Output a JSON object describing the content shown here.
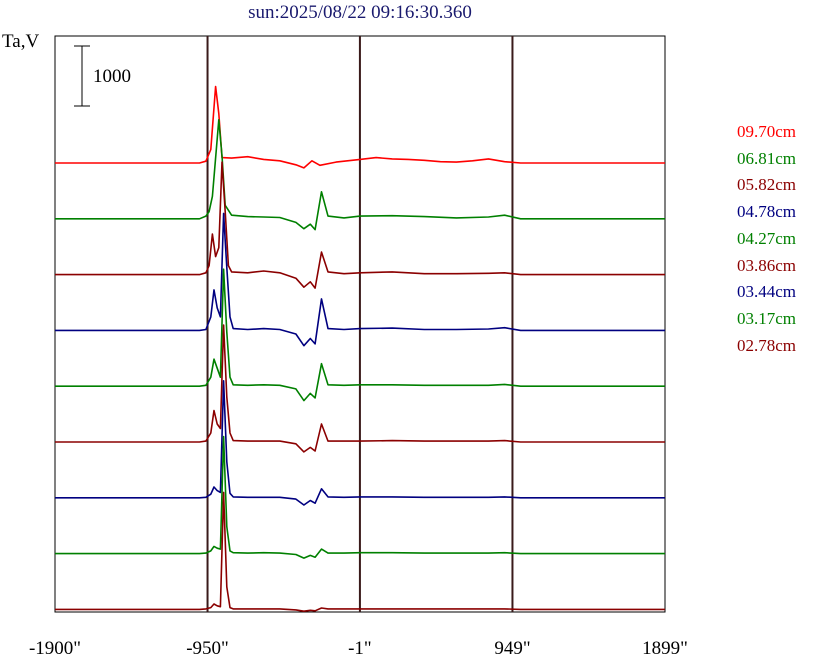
{
  "chart_data": {
    "type": "line",
    "title": "sun:2025/08/22 09:16:30.360",
    "ylabel": "Ta,V",
    "scale_bar_label": "1000",
    "scale_bar_value": 1000,
    "x_ticks": [
      "-1900\"",
      "-950\"",
      "-1\"",
      "949\"",
      "1899\""
    ],
    "x_tick_values": [
      -1900,
      -950,
      -1,
      949,
      1899
    ],
    "xlim": [
      -1900,
      1899
    ],
    "vlines": [
      -950,
      -1,
      949
    ],
    "series": [
      {
        "name": "09.70cm",
        "color": "#ff0000",
        "points": [
          [
            -1900,
            0
          ],
          [
            -1000,
            0
          ],
          [
            -960,
            20
          ],
          [
            -930,
            150
          ],
          [
            -900,
            850
          ],
          [
            -880,
            550
          ],
          [
            -860,
            60
          ],
          [
            -800,
            55
          ],
          [
            -700,
            70
          ],
          [
            -600,
            40
          ],
          [
            -500,
            25
          ],
          [
            -400,
            -20
          ],
          [
            -350,
            -55
          ],
          [
            -300,
            25
          ],
          [
            -250,
            -25
          ],
          [
            -150,
            10
          ],
          [
            0,
            40
          ],
          [
            100,
            60
          ],
          [
            200,
            45
          ],
          [
            300,
            40
          ],
          [
            400,
            30
          ],
          [
            500,
            15
          ],
          [
            600,
            10
          ],
          [
            700,
            25
          ],
          [
            800,
            45
          ],
          [
            900,
            15
          ],
          [
            1000,
            0
          ],
          [
            1899,
            0
          ]
        ]
      },
      {
        "name": "06.81cm",
        "color": "#008000",
        "points": [
          [
            -1900,
            0
          ],
          [
            -1000,
            0
          ],
          [
            -960,
            30
          ],
          [
            -940,
            80
          ],
          [
            -920,
            250
          ],
          [
            -880,
            1100
          ],
          [
            -860,
            700
          ],
          [
            -840,
            150
          ],
          [
            -800,
            40
          ],
          [
            -700,
            25
          ],
          [
            -600,
            20
          ],
          [
            -500,
            15
          ],
          [
            -400,
            -40
          ],
          [
            -350,
            -110
          ],
          [
            -310,
            -60
          ],
          [
            -280,
            -120
          ],
          [
            -240,
            300
          ],
          [
            -200,
            30
          ],
          [
            -100,
            10
          ],
          [
            0,
            30
          ],
          [
            200,
            35
          ],
          [
            400,
            25
          ],
          [
            600,
            10
          ],
          [
            800,
            20
          ],
          [
            900,
            40
          ],
          [
            1000,
            0
          ],
          [
            1899,
            0
          ]
        ]
      },
      {
        "name": "05.82cm",
        "color": "#8b0000",
        "points": [
          [
            -1900,
            0
          ],
          [
            -1000,
            0
          ],
          [
            -960,
            20
          ],
          [
            -940,
            100
          ],
          [
            -920,
            450
          ],
          [
            -900,
            200
          ],
          [
            -880,
            300
          ],
          [
            -860,
            1250
          ],
          [
            -840,
            700
          ],
          [
            -820,
            100
          ],
          [
            -800,
            30
          ],
          [
            -700,
            20
          ],
          [
            -600,
            40
          ],
          [
            -500,
            20
          ],
          [
            -400,
            -40
          ],
          [
            -350,
            -140
          ],
          [
            -310,
            -80
          ],
          [
            -280,
            -150
          ],
          [
            -240,
            250
          ],
          [
            -200,
            30
          ],
          [
            -100,
            10
          ],
          [
            0,
            20
          ],
          [
            200,
            30
          ],
          [
            400,
            10
          ],
          [
            600,
            10
          ],
          [
            800,
            15
          ],
          [
            900,
            20
          ],
          [
            1000,
            0
          ],
          [
            1899,
            0
          ]
        ]
      },
      {
        "name": "04.78cm",
        "color": "#000080",
        "points": [
          [
            -1900,
            0
          ],
          [
            -1000,
            0
          ],
          [
            -960,
            10
          ],
          [
            -930,
            150
          ],
          [
            -910,
            450
          ],
          [
            -890,
            250
          ],
          [
            -870,
            150
          ],
          [
            -850,
            1300
          ],
          [
            -830,
            700
          ],
          [
            -810,
            150
          ],
          [
            -790,
            20
          ],
          [
            -700,
            10
          ],
          [
            -600,
            20
          ],
          [
            -500,
            10
          ],
          [
            -400,
            -40
          ],
          [
            -350,
            -170
          ],
          [
            -310,
            -90
          ],
          [
            -280,
            -150
          ],
          [
            -240,
            350
          ],
          [
            -200,
            20
          ],
          [
            -100,
            10
          ],
          [
            0,
            20
          ],
          [
            200,
            25
          ],
          [
            400,
            10
          ],
          [
            600,
            10
          ],
          [
            800,
            15
          ],
          [
            900,
            30
          ],
          [
            1000,
            0
          ],
          [
            1899,
            0
          ]
        ]
      },
      {
        "name": "04.27cm",
        "color": "#008000",
        "points": [
          [
            -1900,
            0
          ],
          [
            -1000,
            0
          ],
          [
            -960,
            10
          ],
          [
            -930,
            100
          ],
          [
            -910,
            300
          ],
          [
            -890,
            200
          ],
          [
            -870,
            100
          ],
          [
            -850,
            1300
          ],
          [
            -830,
            600
          ],
          [
            -810,
            100
          ],
          [
            -790,
            15
          ],
          [
            -700,
            10
          ],
          [
            -600,
            15
          ],
          [
            -500,
            10
          ],
          [
            -400,
            -30
          ],
          [
            -350,
            -160
          ],
          [
            -310,
            -80
          ],
          [
            -280,
            -130
          ],
          [
            -240,
            250
          ],
          [
            -200,
            15
          ],
          [
            -100,
            10
          ],
          [
            0,
            15
          ],
          [
            200,
            15
          ],
          [
            400,
            10
          ],
          [
            600,
            10
          ],
          [
            800,
            10
          ],
          [
            900,
            20
          ],
          [
            1000,
            0
          ],
          [
            1899,
            0
          ]
        ]
      },
      {
        "name": "03.86cm",
        "color": "#8b0000",
        "points": [
          [
            -1900,
            0
          ],
          [
            -1000,
            0
          ],
          [
            -960,
            10
          ],
          [
            -930,
            100
          ],
          [
            -910,
            350
          ],
          [
            -890,
            200
          ],
          [
            -870,
            150
          ],
          [
            -850,
            1300
          ],
          [
            -830,
            500
          ],
          [
            -810,
            100
          ],
          [
            -790,
            15
          ],
          [
            -700,
            10
          ],
          [
            -600,
            10
          ],
          [
            -500,
            10
          ],
          [
            -400,
            -20
          ],
          [
            -350,
            -110
          ],
          [
            -310,
            -60
          ],
          [
            -280,
            -100
          ],
          [
            -240,
            200
          ],
          [
            -200,
            10
          ],
          [
            -100,
            10
          ],
          [
            0,
            10
          ],
          [
            200,
            15
          ],
          [
            400,
            10
          ],
          [
            600,
            10
          ],
          [
            800,
            10
          ],
          [
            900,
            15
          ],
          [
            1000,
            0
          ],
          [
            1899,
            0
          ]
        ]
      },
      {
        "name": "03.44cm",
        "color": "#000080",
        "points": [
          [
            -1900,
            0
          ],
          [
            -1000,
            0
          ],
          [
            -960,
            5
          ],
          [
            -930,
            40
          ],
          [
            -910,
            120
          ],
          [
            -890,
            80
          ],
          [
            -870,
            60
          ],
          [
            -850,
            1300
          ],
          [
            -830,
            400
          ],
          [
            -810,
            50
          ],
          [
            -790,
            10
          ],
          [
            -700,
            5
          ],
          [
            -600,
            5
          ],
          [
            -500,
            5
          ],
          [
            -400,
            -15
          ],
          [
            -350,
            -80
          ],
          [
            -310,
            -30
          ],
          [
            -280,
            -60
          ],
          [
            -240,
            100
          ],
          [
            -200,
            10
          ],
          [
            -100,
            5
          ],
          [
            0,
            10
          ],
          [
            200,
            10
          ],
          [
            400,
            5
          ],
          [
            600,
            5
          ],
          [
            800,
            5
          ],
          [
            900,
            10
          ],
          [
            1000,
            0
          ],
          [
            1899,
            0
          ]
        ]
      },
      {
        "name": "03.17cm",
        "color": "#008000",
        "points": [
          [
            -1900,
            0
          ],
          [
            -1000,
            0
          ],
          [
            -960,
            5
          ],
          [
            -930,
            30
          ],
          [
            -910,
            80
          ],
          [
            -890,
            60
          ],
          [
            -870,
            50
          ],
          [
            -850,
            1300
          ],
          [
            -830,
            300
          ],
          [
            -810,
            30
          ],
          [
            -790,
            10
          ],
          [
            -700,
            5
          ],
          [
            -600,
            10
          ],
          [
            -500,
            5
          ],
          [
            -400,
            -10
          ],
          [
            -350,
            -50
          ],
          [
            -310,
            -20
          ],
          [
            -280,
            -40
          ],
          [
            -240,
            50
          ],
          [
            -200,
            5
          ],
          [
            -100,
            5
          ],
          [
            0,
            10
          ],
          [
            200,
            10
          ],
          [
            400,
            5
          ],
          [
            600,
            5
          ],
          [
            800,
            5
          ],
          [
            900,
            10
          ],
          [
            1000,
            0
          ],
          [
            1899,
            0
          ]
        ]
      },
      {
        "name": "02.78cm",
        "color": "#8b0000",
        "points": [
          [
            -1900,
            0
          ],
          [
            -1000,
            0
          ],
          [
            -960,
            5
          ],
          [
            -930,
            20
          ],
          [
            -910,
            60
          ],
          [
            -890,
            40
          ],
          [
            -870,
            30
          ],
          [
            -850,
            1300
          ],
          [
            -830,
            250
          ],
          [
            -810,
            20
          ],
          [
            -790,
            5
          ],
          [
            -700,
            5
          ],
          [
            -600,
            5
          ],
          [
            -500,
            5
          ],
          [
            -400,
            -5
          ],
          [
            -350,
            -20
          ],
          [
            -310,
            -10
          ],
          [
            -280,
            -15
          ],
          [
            -240,
            15
          ],
          [
            -200,
            5
          ],
          [
            -100,
            5
          ],
          [
            0,
            5
          ],
          [
            200,
            5
          ],
          [
            400,
            5
          ],
          [
            600,
            5
          ],
          [
            800,
            5
          ],
          [
            900,
            5
          ],
          [
            1000,
            0
          ],
          [
            1899,
            0
          ]
        ]
      }
    ]
  }
}
